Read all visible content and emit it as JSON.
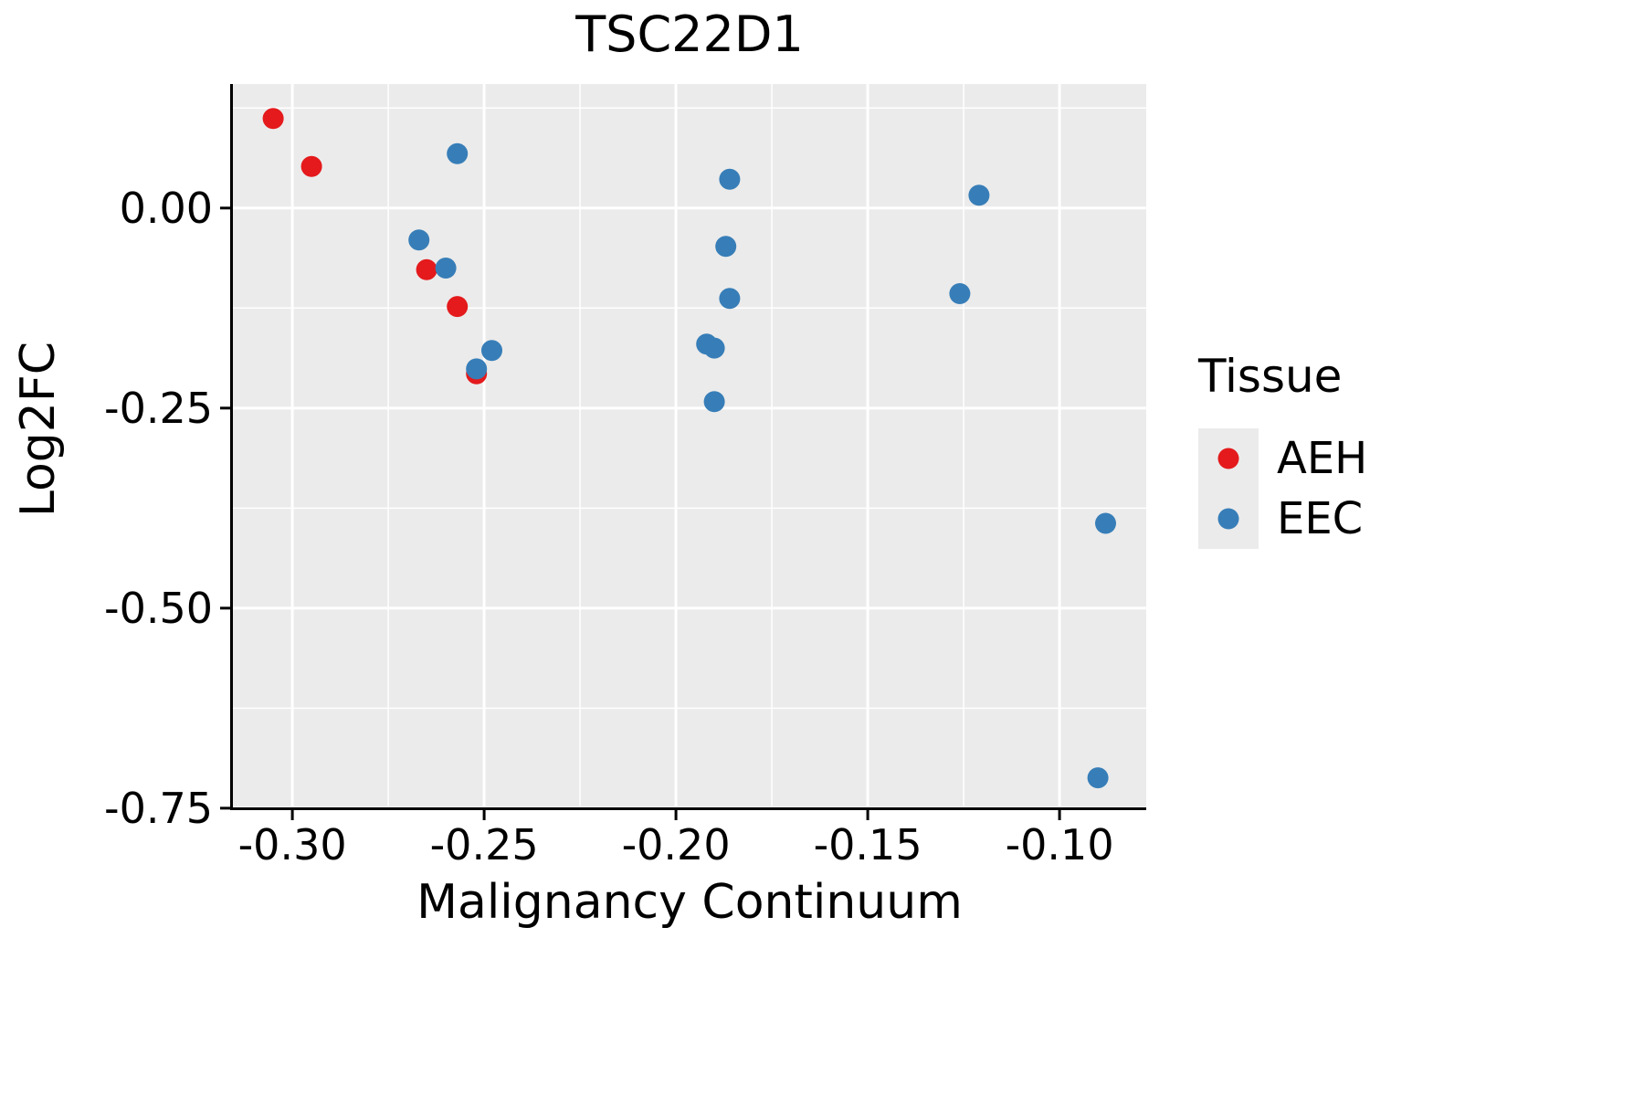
{
  "chart_data": {
    "type": "scatter",
    "title": "TSC22D1",
    "xlabel": "Malignancy Continuum",
    "ylabel": "Log2FC",
    "xlim": [
      -0.3155,
      -0.0774
    ],
    "ylim": [
      -0.749,
      0.155
    ],
    "x_ticks": [
      -0.3,
      -0.25,
      -0.2,
      -0.15,
      -0.1
    ],
    "x_tick_labels": [
      "-0.30",
      "-0.25",
      "-0.20",
      "-0.15",
      "-0.10"
    ],
    "y_ticks": [
      0.0,
      -0.25,
      -0.5,
      -0.75
    ],
    "y_tick_labels": [
      "0.00",
      "-0.25",
      "-0.50",
      "-0.75"
    ],
    "grid": true,
    "panel_bg": "#EBEBEB",
    "grid_color": "#FFFFFF",
    "legend_title": "Tissue",
    "legend_position": "right",
    "series": [
      {
        "name": "AEH",
        "color": "#E41A1C",
        "points": [
          [
            -0.305,
            0.112
          ],
          [
            -0.295,
            0.052
          ],
          [
            -0.265,
            -0.077
          ],
          [
            -0.257,
            -0.123
          ],
          [
            -0.252,
            -0.207
          ]
        ]
      },
      {
        "name": "EEC",
        "color": "#377EB8",
        "points": [
          [
            -0.257,
            0.068
          ],
          [
            -0.267,
            -0.04
          ],
          [
            -0.26,
            -0.075
          ],
          [
            -0.248,
            -0.178
          ],
          [
            -0.252,
            -0.201
          ],
          [
            -0.186,
            0.036
          ],
          [
            -0.187,
            -0.048
          ],
          [
            -0.186,
            -0.113
          ],
          [
            -0.192,
            -0.17
          ],
          [
            -0.19,
            -0.175
          ],
          [
            -0.19,
            -0.242
          ],
          [
            -0.121,
            0.016
          ],
          [
            -0.126,
            -0.107
          ],
          [
            -0.088,
            -0.394
          ],
          [
            -0.09,
            -0.712
          ]
        ]
      }
    ]
  }
}
